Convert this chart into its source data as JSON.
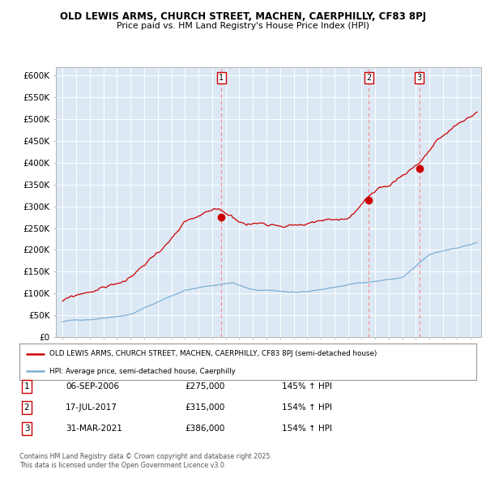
{
  "title_line1": "OLD LEWIS ARMS, CHURCH STREET, MACHEN, CAERPHILLY, CF83 8PJ",
  "title_line2": "Price paid vs. HM Land Registry's House Price Index (HPI)",
  "ylim": [
    0,
    620000
  ],
  "yticks": [
    0,
    50000,
    100000,
    150000,
    200000,
    250000,
    300000,
    350000,
    400000,
    450000,
    500000,
    550000,
    600000
  ],
  "ytick_labels": [
    "£0",
    "£50K",
    "£100K",
    "£150K",
    "£200K",
    "£250K",
    "£300K",
    "£350K",
    "£400K",
    "£450K",
    "£500K",
    "£550K",
    "£600K"
  ],
  "hpi_color": "#7bafd4",
  "price_color": "#cc0000",
  "dashed_color": "#ff8888",
  "plot_bg_color": "#dce9f5",
  "background_color": "#ffffff",
  "grid_color": "#ffffff",
  "legend_line1": "OLD LEWIS ARMS, CHURCH STREET, MACHEN, CAERPHILLY, CF83 8PJ (semi-detached house)",
  "legend_line2": "HPI: Average price, semi-detached house, Caerphilly",
  "sale_dates": [
    "06-SEP-2006",
    "17-JUL-2017",
    "31-MAR-2021"
  ],
  "sale_years": [
    2006.68,
    2017.54,
    2021.25
  ],
  "sale_prices": [
    275000,
    315000,
    386000
  ],
  "sale_prices_str": [
    "£275,000",
    "£315,000",
    "£386,000"
  ],
  "sale_hpi_pct": [
    "145% ↑ HPI",
    "154% ↑ HPI",
    "154% ↑ HPI"
  ],
  "footer": "Contains HM Land Registry data © Crown copyright and database right 2025.\nThis data is licensed under the Open Government Licence v3.0.",
  "xlim_start": 1994.5,
  "xlim_end": 2025.8,
  "xtick_start": 1995,
  "xtick_end": 2025
}
